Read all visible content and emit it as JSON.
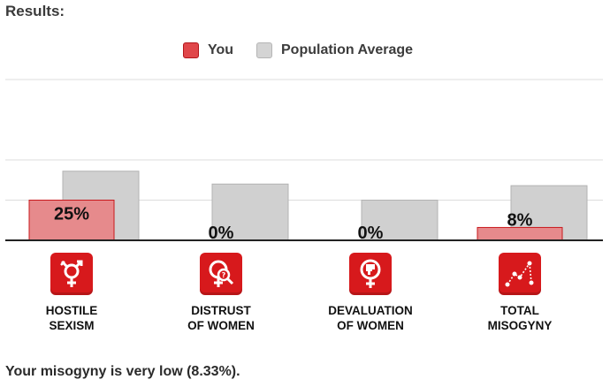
{
  "heading": "Results:",
  "chart_data": {
    "type": "bar",
    "categories": [
      "HOSTILE\nSEXISM",
      "DISTRUST\nOF WOMEN",
      "DEVALUATION\nOF WOMEN",
      "TOTAL\nMISOGYNY"
    ],
    "series": [
      {
        "name": "You",
        "values": [
          25,
          0,
          0,
          8
        ],
        "data_labels": [
          "25%",
          "0%",
          "0%",
          "8%"
        ],
        "color": "#e68a8c",
        "border_color": "#c8191d"
      },
      {
        "name": "Population Average",
        "values": [
          43,
          35,
          25,
          34
        ],
        "color": "#d0d0d0",
        "border_color": "#b3b3b3"
      }
    ],
    "ylim": [
      0,
      100
    ],
    "grid": true,
    "legend_position": "top-center",
    "icons": [
      "hostile-sexism-icon",
      "distrust-icon",
      "devaluation-icon",
      "total-misogyny-icon"
    ]
  },
  "summary": "Your misogyny is very low (8.33%)."
}
